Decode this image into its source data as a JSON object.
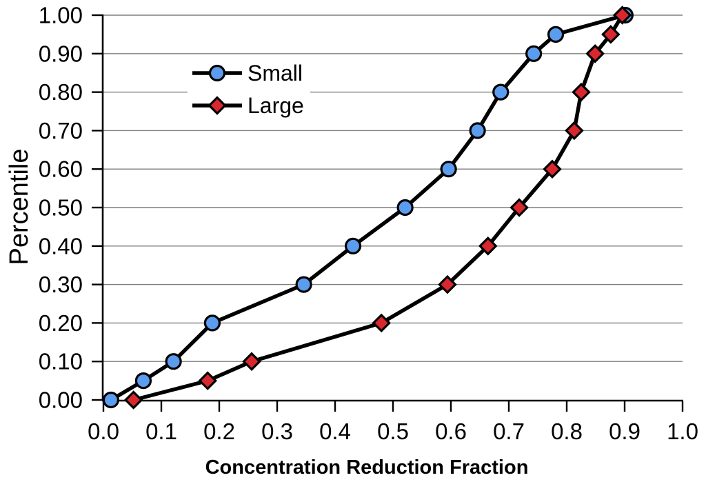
{
  "chart_data": {
    "type": "line",
    "title": "",
    "xlabel": "Concentration Reduction Fraction",
    "ylabel": "Percentile",
    "xlim": [
      0.0,
      1.0
    ],
    "ylim": [
      0.0,
      1.0
    ],
    "x_tick_labels": [
      "0.0",
      "0.1",
      "0.2",
      "0.3",
      "0.4",
      "0.5",
      "0.6",
      "0.7",
      "0.8",
      "0.9",
      "1.0"
    ],
    "y_tick_labels": [
      "0.00",
      "0.10",
      "0.20",
      "0.30",
      "0.40",
      "0.50",
      "0.60",
      "0.70",
      "0.80",
      "0.90",
      "1.00"
    ],
    "grid": "horizontal gridlines every 0.10, gray",
    "legend_position": "inside upper-left",
    "series": [
      {
        "name": "Small",
        "marker": "circle",
        "marker_color": "#5C9CEE",
        "line_color": "#000000",
        "points": [
          [
            0.013,
            0.0
          ],
          [
            0.069,
            0.05
          ],
          [
            0.121,
            0.1
          ],
          [
            0.188,
            0.2
          ],
          [
            0.346,
            0.3
          ],
          [
            0.431,
            0.4
          ],
          [
            0.521,
            0.5
          ],
          [
            0.596,
            0.6
          ],
          [
            0.646,
            0.7
          ],
          [
            0.686,
            0.8
          ],
          [
            0.743,
            0.9
          ],
          [
            0.781,
            0.95
          ],
          [
            0.901,
            1.0
          ]
        ]
      },
      {
        "name": "Large",
        "marker": "diamond",
        "marker_color": "#D8282E",
        "line_color": "#000000",
        "points": [
          [
            0.052,
            0.0
          ],
          [
            0.18,
            0.05
          ],
          [
            0.256,
            0.1
          ],
          [
            0.48,
            0.2
          ],
          [
            0.594,
            0.3
          ],
          [
            0.664,
            0.4
          ],
          [
            0.718,
            0.5
          ],
          [
            0.775,
            0.6
          ],
          [
            0.813,
            0.7
          ],
          [
            0.825,
            0.8
          ],
          [
            0.849,
            0.9
          ],
          [
            0.876,
            0.95
          ],
          [
            0.896,
            1.0
          ]
        ]
      }
    ],
    "colors": {
      "background": "#FFFFFF",
      "grid": "#7F7F7F",
      "axis": "#000000",
      "series_small_fill": "#5C9CEE",
      "series_large_fill": "#D8282E"
    }
  }
}
